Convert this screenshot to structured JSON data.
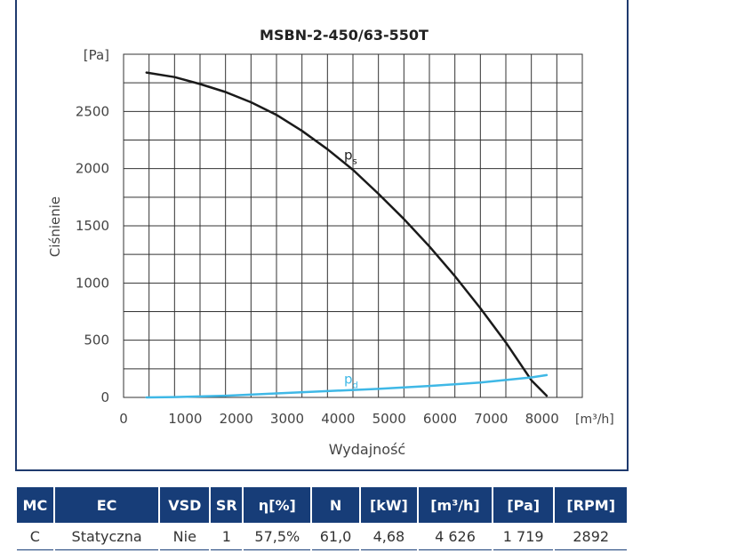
{
  "chart_data": {
    "type": "line",
    "title": "MSBN-2-450/63-550T",
    "ylabel": "Ciśnienie",
    "y_unit": "[Pa]",
    "xlabel": "Wydajność",
    "x_unit": "[m³/h]",
    "xlim": [
      0,
      9000
    ],
    "ylim": [
      0,
      3000
    ],
    "x_ticks": [
      "0",
      "1000",
      "2000",
      "3000",
      "4000",
      "5000",
      "6000",
      "7000",
      "8000"
    ],
    "y_ticks": [
      "0",
      "500",
      "1000",
      "1500",
      "2000",
      "2500"
    ],
    "grid": true,
    "series": [
      {
        "name": "ps",
        "label_main": "p",
        "label_sub": "s",
        "color": "#1a1a1a",
        "x": [
          450,
          1000,
          1500,
          2000,
          2500,
          3000,
          3500,
          4000,
          4500,
          5000,
          5500,
          6000,
          6500,
          7000,
          7500,
          8000,
          8300
        ],
        "y": [
          2840,
          2800,
          2740,
          2670,
          2580,
          2470,
          2330,
          2170,
          1990,
          1780,
          1560,
          1320,
          1060,
          780,
          480,
          150,
          15
        ]
      },
      {
        "name": "pd",
        "label_main": "p",
        "label_sub": "d",
        "color": "#3fb8e6",
        "x": [
          450,
          1000,
          2000,
          3000,
          4000,
          5000,
          6000,
          7000,
          8000,
          8300
        ],
        "y": [
          0,
          3,
          15,
          35,
          55,
          75,
          100,
          130,
          175,
          195
        ]
      }
    ]
  },
  "table": {
    "headers": [
      "MC",
      "EC",
      "VSD",
      "SR",
      "η[%]",
      "N",
      "[kW]",
      "[m³/h]",
      "[Pa]",
      "[RPM]"
    ],
    "row": [
      "C",
      "Statyczna",
      "Nie",
      "1",
      "57,5%",
      "61,0",
      "4,68",
      "4 626",
      "1 719",
      "2892"
    ]
  }
}
